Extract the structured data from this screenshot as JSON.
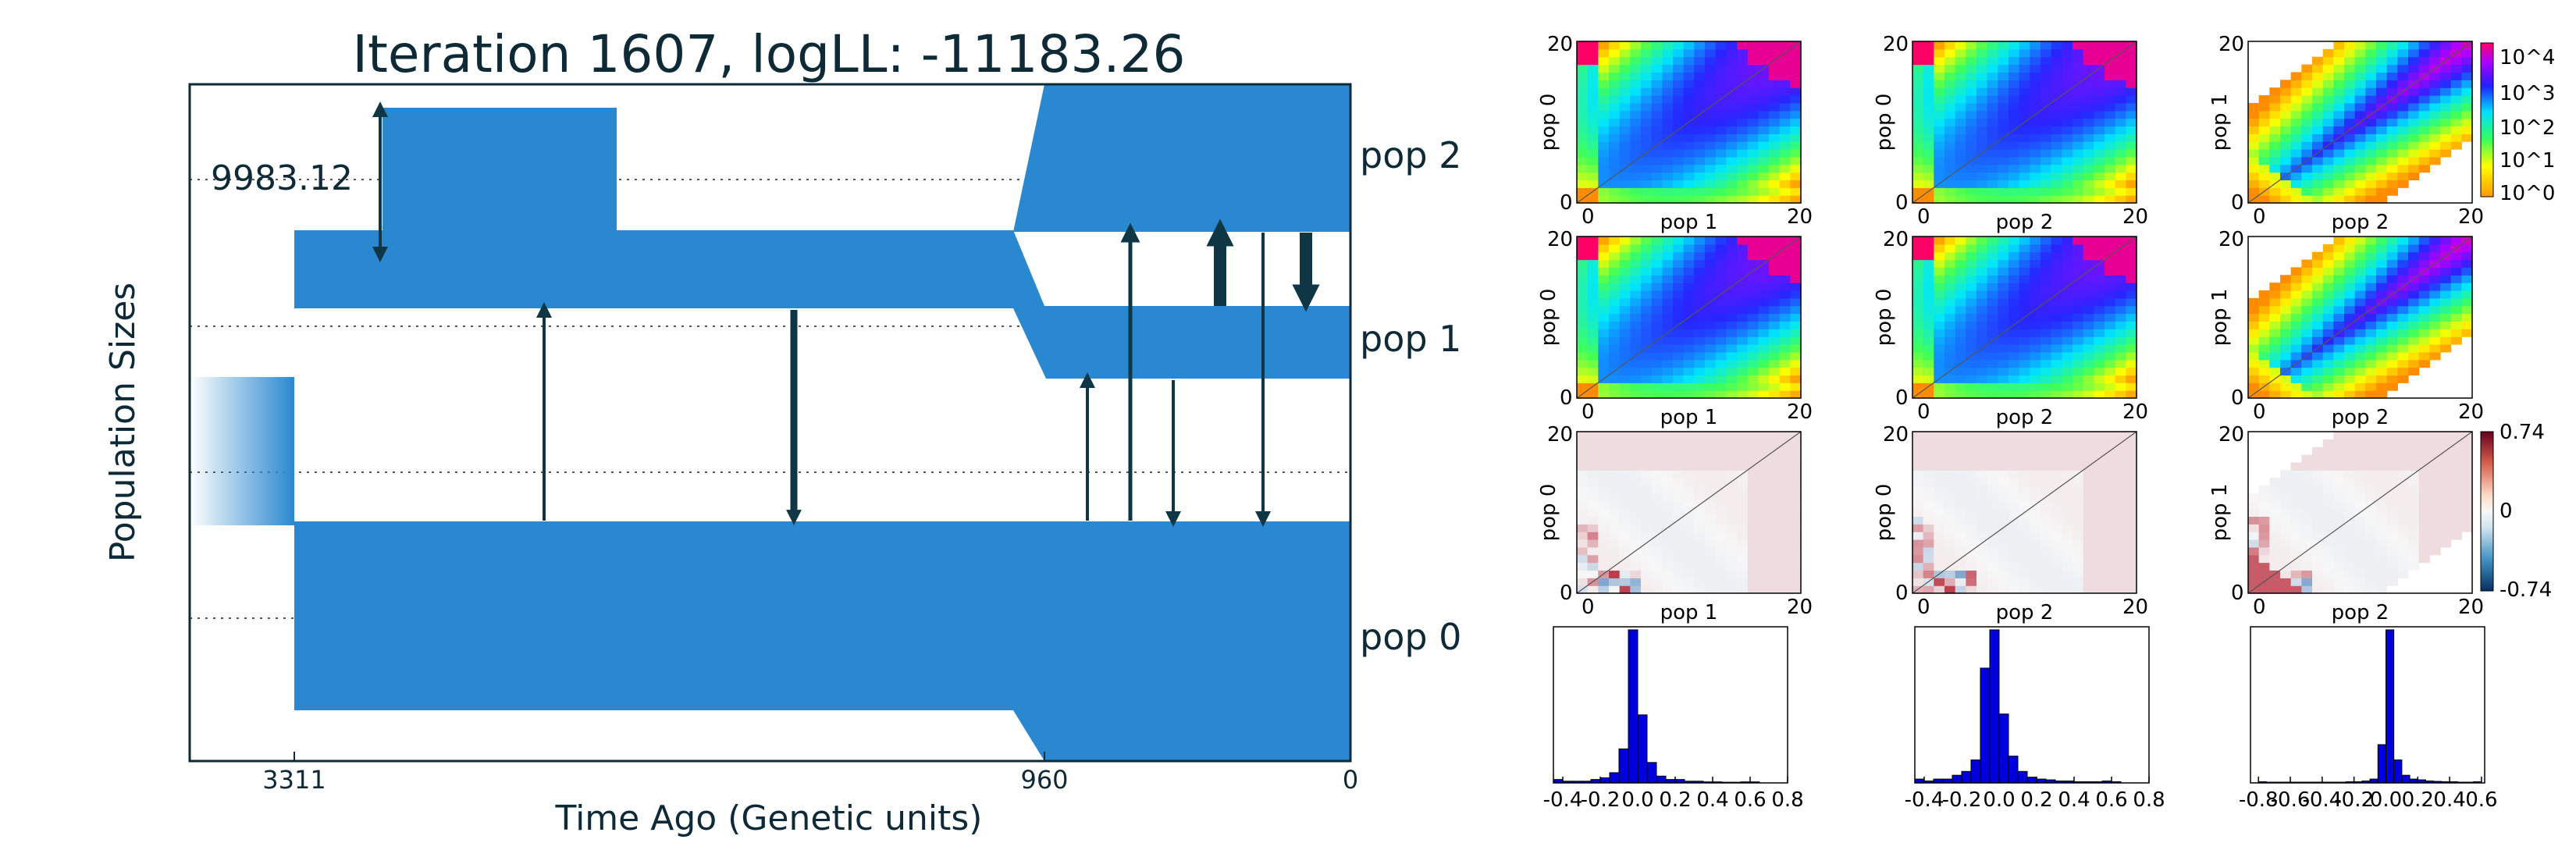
{
  "demography": {
    "title": "Iteration 1607, logLL:  -11183.26",
    "ylabel": "Population Sizes",
    "xlabel": "Time Ago (Genetic units)",
    "x_ticks": [
      "3311",
      "960",
      "0"
    ],
    "scale_bar_label": "9983.12",
    "populations": [
      "pop 2",
      "pop 1",
      "pop 0"
    ],
    "color": "#2a88d0",
    "arrow_color": "#0f3645"
  },
  "chart_data": [
    {
      "type": "heatmap",
      "rows": [
        {
          "ylabels": [
            "pop 0",
            "pop 0",
            "pop 1"
          ],
          "xlabels": [
            "pop 1",
            "pop 2",
            "pop 2"
          ],
          "colormap": "rainbow"
        },
        {
          "ylabels": [
            "pop 0",
            "pop 0",
            "pop 1"
          ],
          "xlabels": [
            "pop 1",
            "pop 2",
            "pop 2"
          ],
          "colormap": "rainbow"
        },
        {
          "ylabels": [
            "pop 0",
            "pop 0",
            "pop 1"
          ],
          "xlabels": [
            "pop 1",
            "pop 2",
            "pop 2"
          ],
          "colormap": "diverging"
        }
      ],
      "axis_ticks": [
        "0",
        "20"
      ],
      "colorbar_log": {
        "labels": [
          "10^4",
          "10^3",
          "10^2",
          "10^1",
          "10^0"
        ]
      },
      "colorbar_residual": {
        "labels": [
          "0.74",
          "0",
          "-0.74"
        ],
        "range": [
          -0.74,
          0.74
        ]
      }
    },
    {
      "type": "bar",
      "histograms": [
        {
          "x_ticks": [
            "-0.4",
            "-0.2",
            "0.0",
            "0.2",
            "0.4",
            "0.6",
            "0.8"
          ],
          "bins": [
            -0.45,
            -0.4,
            -0.35,
            -0.3,
            -0.25,
            -0.2,
            -0.15,
            -0.1,
            -0.05,
            0.0,
            0.05,
            0.1,
            0.15,
            0.2,
            0.25,
            0.3,
            0.35,
            0.4,
            0.45,
            0.5,
            0.55,
            0.6,
            0.65
          ],
          "values": [
            1,
            0.5,
            0.5,
            0.5,
            1,
            1.5,
            3,
            10,
            45,
            20,
            6,
            2,
            1,
            1,
            0.5,
            0.5,
            0.3,
            0.3,
            0.2,
            0.2,
            0.3,
            0.3,
            0
          ],
          "xlim": [
            -0.45,
            0.8
          ]
        },
        {
          "x_ticks": [
            "-0.4",
            "-0.2",
            "0.0",
            "0.2",
            "0.4",
            "0.6",
            "0.8"
          ],
          "bins": [
            -0.45,
            -0.4,
            -0.35,
            -0.3,
            -0.25,
            -0.2,
            -0.15,
            -0.1,
            -0.05,
            0.0,
            0.05,
            0.1,
            0.15,
            0.2,
            0.25,
            0.3,
            0.35,
            0.4,
            0.45,
            0.5,
            0.55,
            0.6,
            0.65
          ],
          "values": [
            1,
            0.5,
            1,
            1,
            2,
            3,
            6,
            30,
            40,
            18,
            7,
            3,
            1.5,
            1,
            0.8,
            0.5,
            0.5,
            0.3,
            0.3,
            0.3,
            0.5,
            0.3,
            0
          ],
          "xlim": [
            -0.45,
            0.8
          ]
        },
        {
          "x_ticks": [
            "-0.8",
            "-0.6",
            "-0.4",
            "-0.2",
            "0.0",
            "0.2",
            "0.4",
            "0.6"
          ],
          "bins": [
            -0.8,
            -0.75,
            -0.7,
            -0.65,
            -0.6,
            -0.55,
            -0.5,
            -0.45,
            -0.4,
            -0.35,
            -0.3,
            -0.25,
            -0.2,
            -0.15,
            -0.1,
            -0.05,
            0.0,
            0.05,
            0.1,
            0.15,
            0.2,
            0.25,
            0.3,
            0.35,
            0.4,
            0.45,
            0.5,
            0.55
          ],
          "values": [
            0.3,
            0.2,
            0.2,
            0.2,
            0.2,
            0.2,
            0.2,
            0.2,
            0.2,
            0.2,
            0.2,
            0.3,
            0.3,
            0.5,
            1,
            10,
            40,
            6,
            2,
            1,
            0.8,
            0.5,
            0.4,
            0.3,
            0.3,
            0.2,
            0.2,
            0.3
          ],
          "xlim": [
            -0.85,
            0.62
          ]
        }
      ]
    }
  ]
}
